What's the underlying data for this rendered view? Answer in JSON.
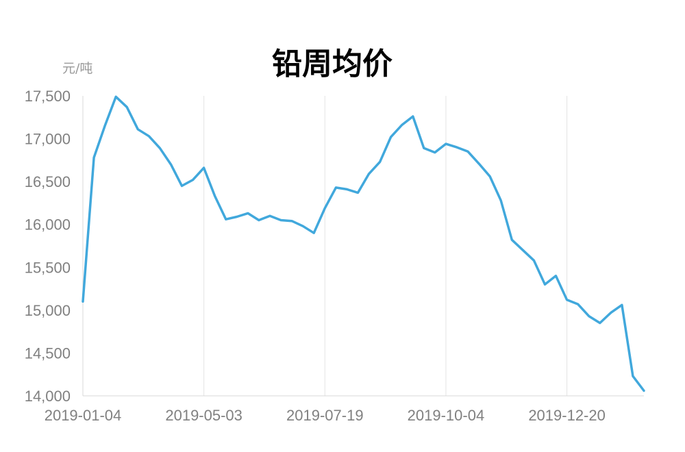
{
  "chart_data": {
    "type": "line",
    "title": "铅周均价",
    "ylabel": "元/吨",
    "xlabel": "",
    "ylim": [
      14000,
      17500
    ],
    "yticks": [
      "14,000",
      "14,500",
      "15,000",
      "15,500",
      "16,000",
      "16,500",
      "17,000",
      "17,500"
    ],
    "ytick_values": [
      14000,
      14500,
      15000,
      15500,
      16000,
      16500,
      17000,
      17500
    ],
    "xticks": [
      "2019-01-04",
      "2019-05-03",
      "2019-07-19",
      "2019-10-04",
      "2019-12-20"
    ],
    "grid": "vertical",
    "legend": "none",
    "color": "#41a8dc",
    "series": [
      {
        "values": [
          15100,
          16780,
          17150,
          17490,
          17370,
          17110,
          17030,
          16890,
          16700,
          16450,
          16520,
          16660,
          16330,
          16060,
          16090,
          16130,
          16050,
          16100,
          16050,
          16040,
          15980,
          15900,
          16190,
          16430,
          16410,
          16370,
          16590,
          16730,
          17020,
          17160,
          17260,
          16890,
          16840,
          16940,
          16900,
          16850,
          16710,
          16560,
          16280,
          15820,
          15700,
          15580,
          15300,
          15400,
          15120,
          15070,
          14930,
          14850,
          14970,
          15060,
          14230,
          14060
        ]
      }
    ]
  }
}
